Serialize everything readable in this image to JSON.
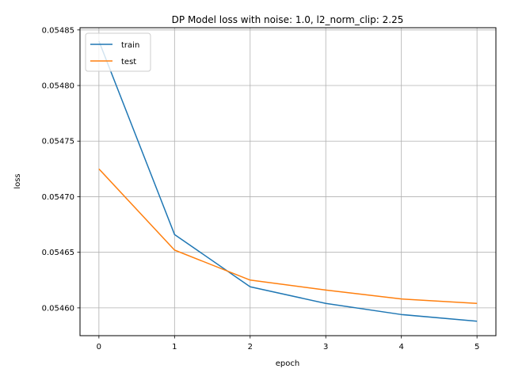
{
  "chart_data": {
    "type": "line",
    "title": "DP Model loss with noise: 1.0, l2_norm_clip: 2.25",
    "xlabel": "epoch",
    "ylabel": "loss",
    "x": [
      0,
      1,
      2,
      3,
      4,
      5
    ],
    "xticks": [
      "0",
      "1",
      "2",
      "3",
      "4",
      "5"
    ],
    "xlim": [
      -0.25,
      5.25
    ],
    "yticks": [
      "0.05460",
      "0.05465",
      "0.05470",
      "0.05475",
      "0.05480",
      "0.05485"
    ],
    "ylim": [
      0.054575,
      0.054852
    ],
    "grid": true,
    "legend_position": "top-left",
    "series": [
      {
        "name": "train",
        "color": "#1f77b4",
        "values": [
          0.05484,
          0.054666,
          0.054619,
          0.054604,
          0.054594,
          0.054588
        ]
      },
      {
        "name": "test",
        "color": "#ff7f0e",
        "values": [
          0.054725,
          0.054652,
          0.054625,
          0.054616,
          0.054608,
          0.054604
        ]
      }
    ]
  }
}
